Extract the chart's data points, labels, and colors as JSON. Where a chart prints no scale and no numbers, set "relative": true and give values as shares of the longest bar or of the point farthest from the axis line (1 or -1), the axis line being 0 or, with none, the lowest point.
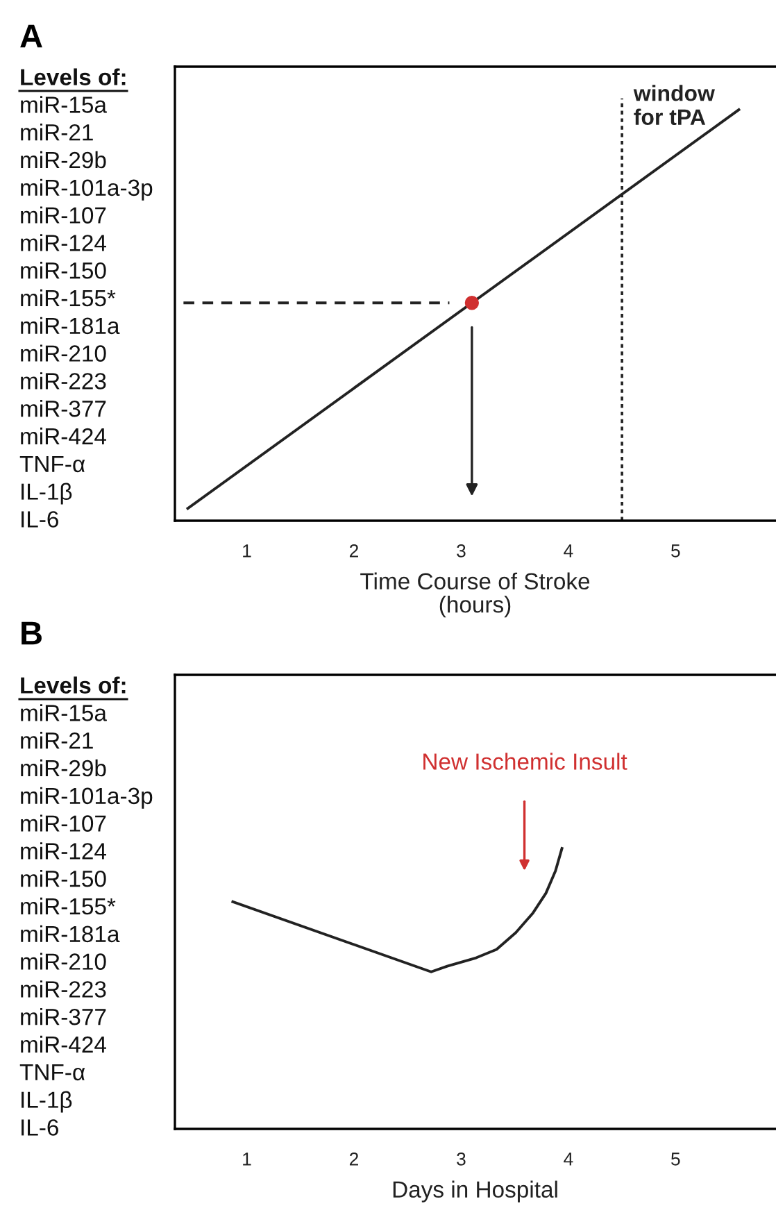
{
  "chart_data": [
    {
      "type": "line",
      "title": "A",
      "ylabel": "Levels of:",
      "xlabel": "Time Course of Stroke\n(hours)",
      "relative": true,
      "xlim": [
        0.33,
        5.93
      ],
      "xticks": [
        1,
        2,
        3,
        4,
        5
      ],
      "grid": false,
      "series": [
        {
          "color": "#222222",
          "x": [
            0.45,
            5.59
          ],
          "values": [
            0.03,
            1
          ]
        },
        {
          "color": "#222222",
          "line_style": "dashed",
          "x": [
            0.41,
            2.89
          ],
          "values": [
            0.53,
            0.53
          ]
        },
        {
          "type": "scatter",
          "color": "#d03030",
          "marker": "circle",
          "x": [
            3.1
          ],
          "values": [
            0.53
          ]
        }
      ],
      "ref_lines": [
        {
          "axis": "x",
          "value": 4.5,
          "label": "window\nfor tPA",
          "line_style": "dotted",
          "color": "#222222"
        }
      ],
      "annotations": [
        "miR-15a",
        "miR-21",
        "miR-29b",
        "miR-101a-3p",
        "miR-107",
        "miR-124",
        "miR-150",
        "miR-155*",
        "miR-181a",
        "miR-210",
        "miR-223",
        "miR-377",
        "miR-424",
        "TNF-α",
        "IL-1β",
        "IL-6"
      ]
    },
    {
      "type": "line",
      "title": "B",
      "ylabel": "Levels of:",
      "xlabel": "Days in Hospital",
      "relative": true,
      "xlim": [
        0.33,
        5.93
      ],
      "xticks": [
        1,
        2,
        3,
        4,
        5
      ],
      "grid": false,
      "series": [
        {
          "color": "#222222",
          "x": [
            0.87,
            2.72,
            2.87,
            3.14,
            3.33,
            3.51,
            3.67,
            3.79,
            3.88,
            3.94
          ],
          "values": [
            0.81,
            0.56,
            0.58,
            0.61,
            0.64,
            0.7,
            0.77,
            0.84,
            0.92,
            1
          ]
        }
      ],
      "annotations": [
        "New Ischemic Insult",
        "miR-15a",
        "miR-21",
        "miR-29b",
        "miR-101a-3p",
        "miR-107",
        "miR-124",
        "miR-150",
        "miR-155*",
        "miR-181a",
        "miR-210",
        "miR-223",
        "miR-377",
        "miR-424",
        "TNF-α",
        "IL-1β",
        "IL-6"
      ]
    }
  ]
}
